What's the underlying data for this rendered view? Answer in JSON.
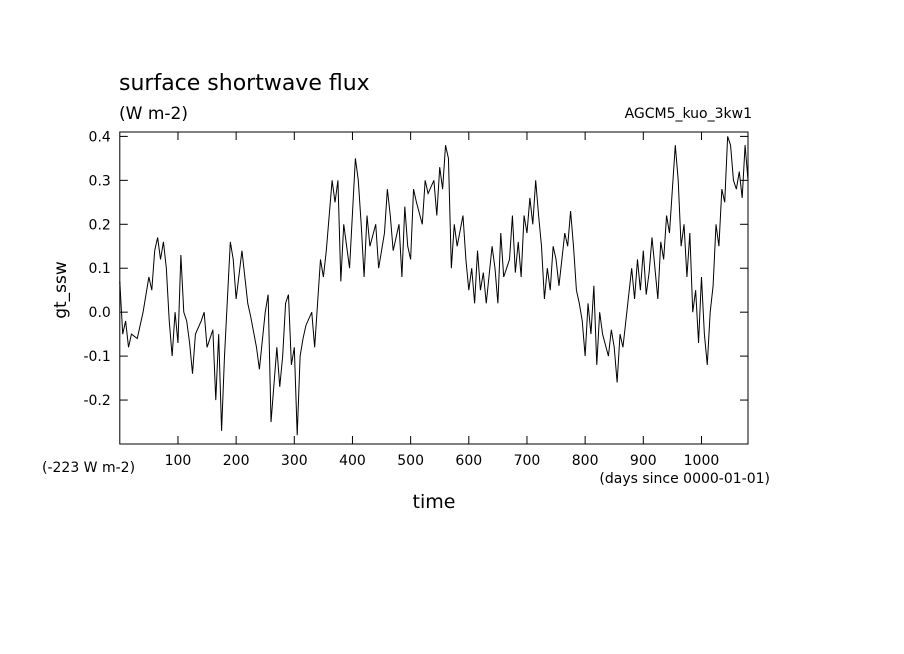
{
  "chart_data": {
    "type": "line",
    "title": "surface shortwave flux",
    "units": "(W m-2)",
    "annotation": "AGCM5_kuo_3kw1",
    "y_label": "gt_ssw",
    "offset_label": "(-223 W m-2)",
    "x_label": "time",
    "x_units": "(days since 0000-01-01)",
    "xlim": [
      0,
      1080
    ],
    "xticks": [
      100,
      200,
      300,
      400,
      500,
      600,
      700,
      800,
      900,
      1000
    ],
    "ylim": [
      -0.3,
      0.41
    ],
    "yticks": [
      -0.2,
      -0.1,
      {
        "value": 0,
        "label": "0.0"
      },
      0.1,
      0.2,
      0.3,
      0.4
    ],
    "x": [
      0,
      5,
      10,
      15,
      20,
      30,
      40,
      50,
      55,
      60,
      65,
      70,
      75,
      80,
      85,
      90,
      95,
      100,
      105,
      110,
      115,
      120,
      125,
      130,
      140,
      145,
      150,
      160,
      165,
      170,
      175,
      180,
      190,
      195,
      200,
      210,
      220,
      225,
      235,
      240,
      250,
      255,
      260,
      270,
      275,
      280,
      285,
      290,
      295,
      300,
      305,
      310,
      315,
      320,
      330,
      335,
      345,
      350,
      355,
      365,
      370,
      375,
      380,
      385,
      390,
      395,
      405,
      410,
      415,
      420,
      425,
      430,
      440,
      445,
      455,
      460,
      465,
      470,
      480,
      485,
      490,
      495,
      500,
      505,
      510,
      520,
      525,
      530,
      540,
      545,
      550,
      555,
      560,
      565,
      570,
      575,
      580,
      590,
      595,
      600,
      605,
      610,
      615,
      620,
      625,
      630,
      640,
      645,
      650,
      655,
      660,
      670,
      675,
      680,
      685,
      690,
      695,
      700,
      705,
      710,
      715,
      720,
      725,
      730,
      735,
      740,
      745,
      750,
      755,
      765,
      770,
      775,
      780,
      785,
      790,
      795,
      800,
      805,
      810,
      815,
      820,
      825,
      830,
      840,
      845,
      850,
      855,
      860,
      865,
      870,
      880,
      885,
      890,
      895,
      900,
      905,
      910,
      915,
      920,
      925,
      930,
      935,
      940,
      945,
      950,
      955,
      960,
      965,
      970,
      975,
      980,
      985,
      990,
      995,
      1000,
      1005,
      1010,
      1015,
      1020,
      1025,
      1030,
      1035,
      1040,
      1045,
      1050,
      1055,
      1060,
      1065,
      1070,
      1075,
      1080
    ],
    "series": [
      {
        "color": "#000000",
        "values": [
          0.07,
          -0.05,
          -0.02,
          -0.08,
          -0.05,
          -0.06,
          0.0,
          0.08,
          0.05,
          0.14,
          0.17,
          0.12,
          0.16,
          0.1,
          -0.02,
          -0.1,
          0.0,
          -0.07,
          0.13,
          0.0,
          -0.02,
          -0.07,
          -0.14,
          -0.05,
          -0.02,
          0.0,
          -0.08,
          -0.04,
          -0.2,
          -0.05,
          -0.27,
          -0.1,
          0.16,
          0.12,
          0.03,
          0.14,
          0.02,
          -0.01,
          -0.08,
          -0.13,
          0.0,
          0.04,
          -0.25,
          -0.08,
          -0.17,
          -0.1,
          0.02,
          0.04,
          -0.12,
          -0.08,
          -0.28,
          -0.1,
          -0.06,
          -0.03,
          0.0,
          -0.08,
          0.12,
          0.08,
          0.14,
          0.3,
          0.25,
          0.3,
          0.07,
          0.2,
          0.15,
          0.1,
          0.35,
          0.3,
          0.2,
          0.08,
          0.22,
          0.15,
          0.2,
          0.1,
          0.18,
          0.28,
          0.22,
          0.14,
          0.2,
          0.08,
          0.24,
          0.15,
          0.12,
          0.28,
          0.25,
          0.2,
          0.3,
          0.27,
          0.3,
          0.22,
          0.33,
          0.28,
          0.38,
          0.35,
          0.1,
          0.2,
          0.15,
          0.22,
          0.12,
          0.05,
          0.1,
          0.02,
          0.14,
          0.05,
          0.09,
          0.02,
          0.15,
          0.1,
          0.02,
          0.18,
          0.08,
          0.12,
          0.22,
          0.09,
          0.16,
          0.08,
          0.22,
          0.18,
          0.26,
          0.2,
          0.3,
          0.22,
          0.15,
          0.03,
          0.1,
          0.05,
          0.15,
          0.12,
          0.06,
          0.18,
          0.15,
          0.23,
          0.15,
          0.05,
          0.02,
          -0.02,
          -0.1,
          0.02,
          -0.05,
          0.06,
          -0.12,
          0.0,
          -0.05,
          -0.1,
          -0.04,
          -0.08,
          -0.16,
          -0.05,
          -0.08,
          -0.02,
          0.1,
          0.03,
          0.12,
          0.05,
          0.14,
          0.04,
          0.09,
          0.17,
          0.1,
          0.03,
          0.16,
          0.12,
          0.22,
          0.18,
          0.28,
          0.38,
          0.3,
          0.15,
          0.2,
          0.08,
          0.18,
          0.0,
          0.05,
          -0.07,
          0.08,
          -0.05,
          -0.12,
          0.0,
          0.06,
          0.2,
          0.15,
          0.28,
          0.25,
          0.4,
          0.38,
          0.3,
          0.28,
          0.32,
          0.26,
          0.38,
          0.3
        ]
      }
    ]
  }
}
